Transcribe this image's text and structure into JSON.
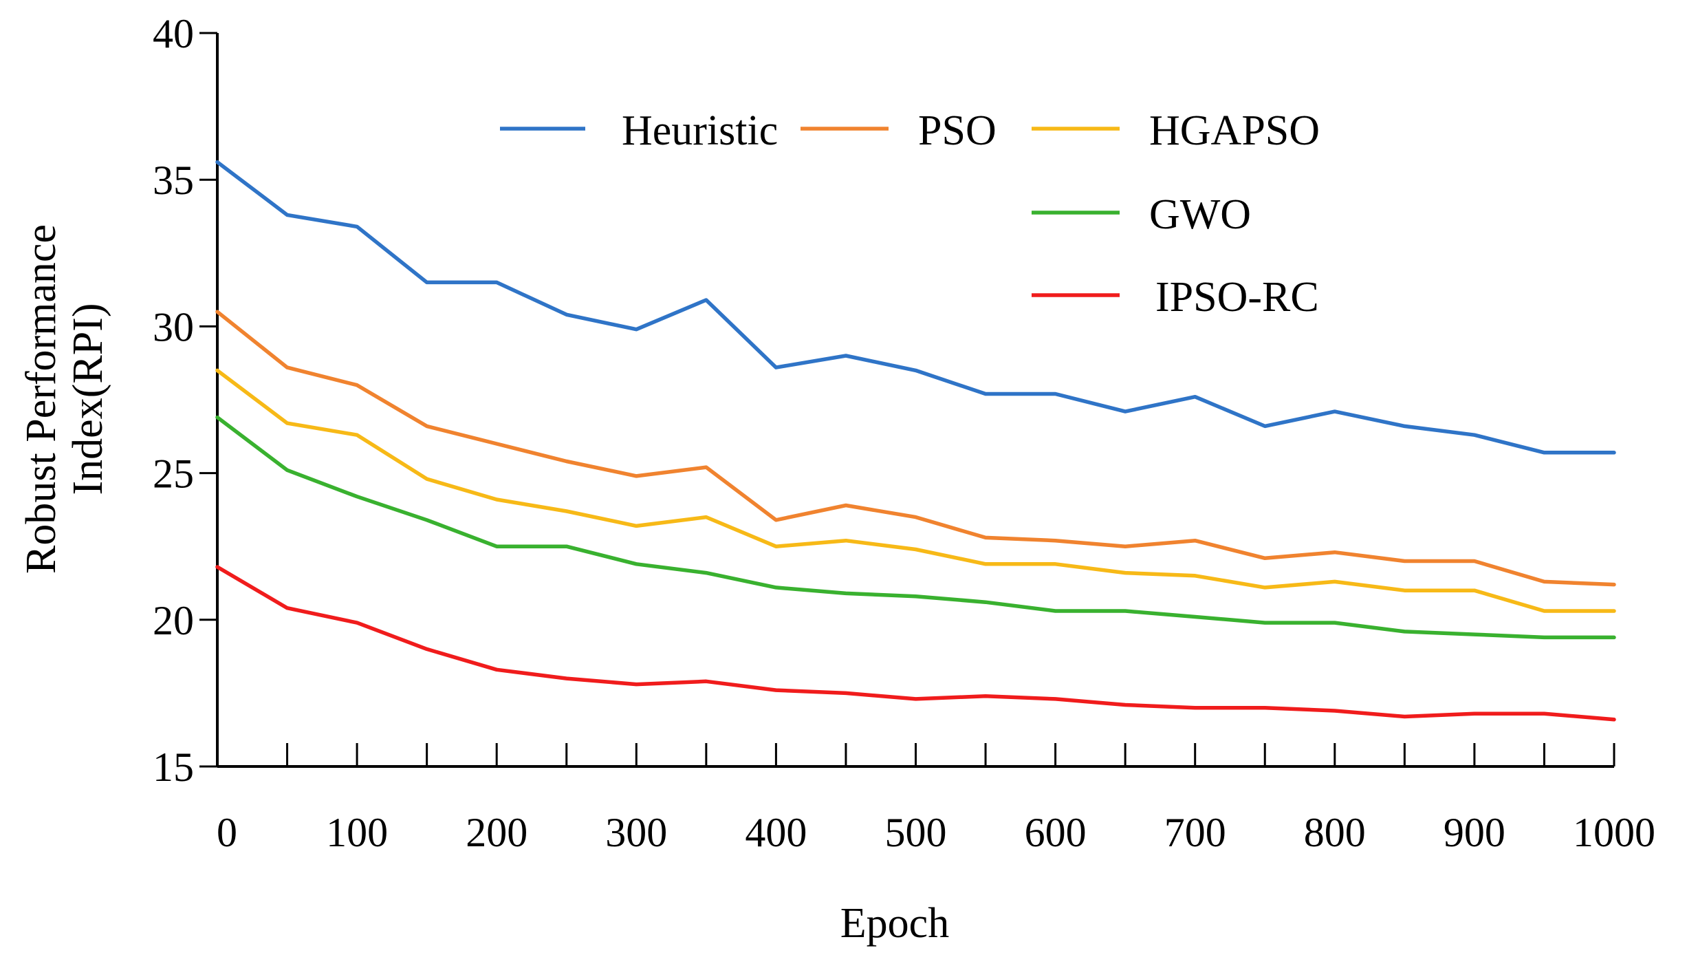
{
  "chart_data": {
    "type": "line",
    "title": "",
    "xlabel": "Epoch",
    "ylabel_lines": [
      "Robust Performance",
      "Index(RPI)"
    ],
    "xlim": [
      0,
      1000
    ],
    "ylim": [
      15,
      40
    ],
    "grid": false,
    "x_ticks": [
      0,
      100,
      200,
      300,
      400,
      500,
      600,
      700,
      800,
      900,
      1000
    ],
    "x_tick_labels": [
      "0",
      "100",
      "200",
      "300",
      "400",
      "500",
      "600",
      "700",
      "800",
      "900",
      "1000"
    ],
    "y_ticks": [
      15,
      20,
      25,
      30,
      35,
      40
    ],
    "y_tick_labels": [
      "15",
      "20",
      "25",
      "30",
      "35",
      "40"
    ],
    "x": [
      0,
      50,
      100,
      150,
      200,
      250,
      300,
      350,
      400,
      450,
      500,
      550,
      600,
      650,
      700,
      750,
      800,
      850,
      900,
      950,
      1000
    ],
    "series": [
      {
        "name": "Heuristic",
        "color": "#2f74c7",
        "values": [
          35.6,
          33.8,
          33.4,
          31.5,
          31.5,
          30.4,
          29.9,
          30.9,
          28.6,
          29.0,
          28.5,
          27.7,
          27.7,
          27.1,
          27.6,
          26.6,
          27.1,
          26.6,
          26.3,
          25.7,
          25.7
        ]
      },
      {
        "name": "PSO",
        "color": "#f0832f",
        "values": [
          30.5,
          28.6,
          28.0,
          26.6,
          26.0,
          25.4,
          24.9,
          25.2,
          23.4,
          23.9,
          23.5,
          22.8,
          22.7,
          22.5,
          22.7,
          22.1,
          22.3,
          22.0,
          22.0,
          21.3,
          21.2
        ]
      },
      {
        "name": "HGAPSO",
        "color": "#f7b917",
        "values": [
          28.5,
          26.7,
          26.3,
          24.8,
          24.1,
          23.7,
          23.2,
          23.5,
          22.5,
          22.7,
          22.4,
          21.9,
          21.9,
          21.6,
          21.5,
          21.1,
          21.3,
          21.0,
          21.0,
          20.3,
          20.3
        ]
      },
      {
        "name": "GWO",
        "color": "#39b12f",
        "values": [
          26.9,
          25.1,
          24.2,
          23.4,
          22.5,
          22.5,
          21.9,
          21.6,
          21.1,
          20.9,
          20.8,
          20.6,
          20.3,
          20.3,
          20.1,
          19.9,
          19.9,
          19.6,
          19.5,
          19.4,
          19.4
        ]
      },
      {
        "name": "IPSO-RC",
        "color": "#f01c1c",
        "values": [
          21.8,
          20.4,
          19.9,
          19.0,
          18.3,
          18.0,
          17.8,
          17.9,
          17.6,
          17.5,
          17.3,
          17.4,
          17.3,
          17.1,
          17.0,
          17.0,
          16.9,
          16.7,
          16.8,
          16.8,
          16.6
        ]
      }
    ],
    "legend": {
      "placement": "top-right",
      "entries": [
        "Heuristic",
        "PSO",
        "HGAPSO",
        "GWO",
        "IPSO-RC"
      ]
    }
  }
}
